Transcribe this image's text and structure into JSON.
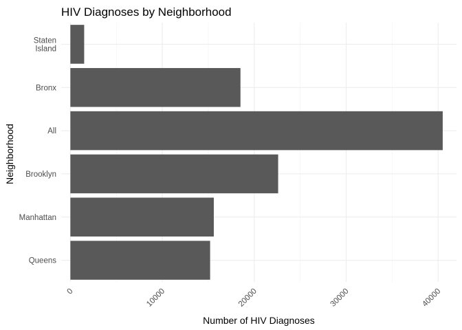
{
  "chart_data": {
    "type": "bar",
    "orientation": "horizontal",
    "title": "HIV Diagnoses by Neighborhood",
    "xlabel": "Number of HIV Diagnoses",
    "ylabel": "Neighborhood",
    "categories": [
      "Staten Island",
      "Bronx",
      "All",
      "Brooklyn",
      "Manhattan",
      "Queens"
    ],
    "category_labels": [
      [
        "Staten",
        "Island"
      ],
      [
        "Bronx"
      ],
      [
        "All"
      ],
      [
        "Brooklyn"
      ],
      [
        "Manhattan"
      ],
      [
        "Queens"
      ]
    ],
    "values": [
      1500,
      18500,
      40500,
      22600,
      15600,
      15200
    ],
    "xlim": [
      -1000,
      42000
    ],
    "xticks": [
      0,
      10000,
      20000,
      30000,
      40000
    ],
    "xtick_labels": [
      "0",
      "10000",
      "20000",
      "30000",
      "40000"
    ],
    "grid": true,
    "legend": "none",
    "bar_color": "#595959"
  }
}
